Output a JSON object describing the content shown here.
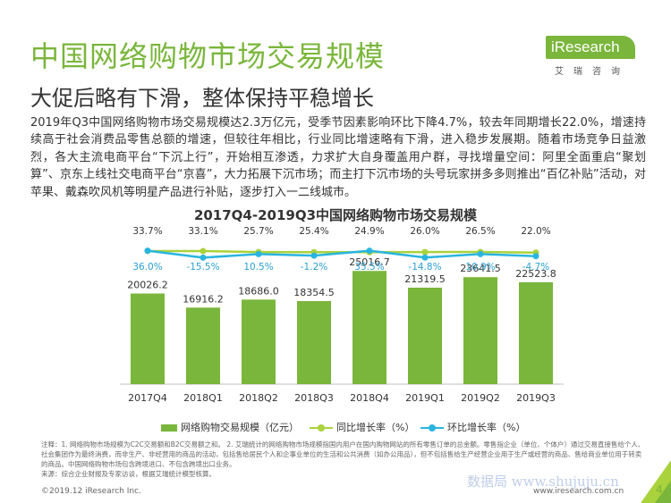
{
  "header": {
    "title": "中国网络购物市场交易规模",
    "subtitle": "大促后略有下滑，整体保持平稳增长"
  },
  "logo": {
    "brand": "iResearch",
    "sub": "艾瑞咨询"
  },
  "body_text": "2019年Q3中国网络购物市场交易规模达2.3万亿元，受季节因素影响环比下降4.7%，较去年同期增长22.0%，增速持续高于社会消费品零售总额的增速，但较往年相比，行业同比增速略有下滑，进入稳步发展期。随着市场竞争日益激烈，各大主流电商平台“下沉上行”，开始相互渗透，力求扩大自身覆盖用户群，寻找增量空间：阿里全面重启“聚划算”、京东上线社交电商平台“京喜”，大力拓展下沉市场；而主打下沉市场的头号玩家拼多多则推出“百亿补贴”活动，对苹果、戴森吹风机等明星产品进行补贴，逐步打入一二线城市。",
  "chart_data": {
    "type": "bar",
    "title": "2017Q4-2019Q3中国网络购物市场交易规模",
    "categories": [
      "2017Q4",
      "2018Q1",
      "2018Q2",
      "2018Q3",
      "2018Q4",
      "2019Q1",
      "2019Q2",
      "2019Q3"
    ],
    "series": [
      {
        "name": "网络购物交易规模（亿元）",
        "kind": "bar",
        "values": [
          20026.2,
          16916.2,
          18686.0,
          18354.5,
          25016.7,
          21319.5,
          23641.5,
          22523.8
        ],
        "labels": [
          "20026.2",
          "16916.2",
          "18686.0",
          "18354.5",
          "25016.7",
          "21319.5",
          "23641.5",
          "22523.8"
        ]
      },
      {
        "name": "同比增长率（%）",
        "kind": "line",
        "values": [
          33.7,
          33.1,
          25.7,
          25.4,
          24.9,
          26.0,
          26.5,
          22.0
        ],
        "labels": [
          "33.7%",
          "33.1%",
          "25.7%",
          "25.4%",
          "24.9%",
          "26.0%",
          "26.5%",
          "22.0%"
        ]
      },
      {
        "name": "环比增长率（%）",
        "kind": "line",
        "values": [
          36.0,
          -15.5,
          10.5,
          -1.2,
          35.5,
          -14.8,
          10.9,
          -4.7
        ],
        "labels": [
          "36.0%",
          "-15.5%",
          "10.5%",
          "-1.2%",
          "35.5%",
          "-14.8%",
          "10.9%",
          "-4.7%"
        ]
      }
    ],
    "ylim": [
      0,
      30000
    ],
    "grid": false,
    "legend_position": "bottom",
    "colors": {
      "bar": "#7AB63B",
      "yoy": "#A9D23C",
      "mom": "#29B5E0"
    }
  },
  "note": "注释：1. 网络购物市场规模为C2C交易额和B2C交易额之和。 2. 艾瑞统计的网络购物市场规模指国内用户在国内购物网站的所有零售订单的总金额。零售指企业（单位、个体户）通过交易直接售给个人、社会集团作为最终消费，而非生产、非经营用的商品的活动，包括售给居民个人和企事业单位的生活和公共消费（如办公用品），但不包括售给生产经营企业用于生产或经营的商品、售给商业单位用于转卖的商品。中国网络购物市场包含跨境进口、不包含跨境出口业务。",
  "source": "来源：综合企业财报及专家访谈，根据艾瑞统计模型核算。",
  "footer": {
    "copyright": "©2019.12 iResearch Inc.",
    "url": "www.iresearch.com.cn",
    "watermark": "数据局 www.shujuju.cn",
    "page_number": "4"
  }
}
